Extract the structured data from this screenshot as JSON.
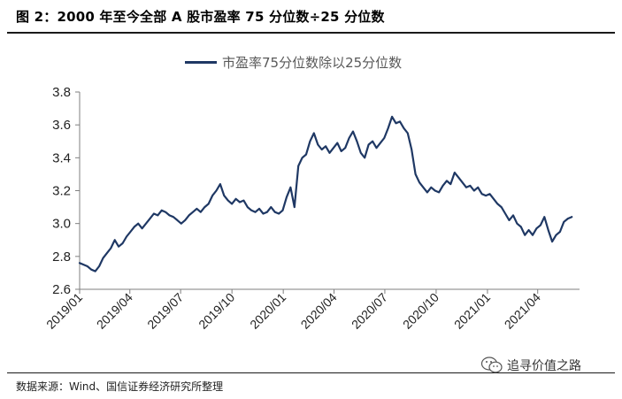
{
  "figure": {
    "title": "图 2：2000 年至今全部 A 股市盈率 75 分位数÷25 分位数",
    "source": "数据来源：Wind、国信证券经济研究所整理",
    "watermark": "追寻价值之路",
    "watermark_icon": "wechat-bubble-icon"
  },
  "chart_data": {
    "type": "line",
    "title": "",
    "xlabel": "",
    "ylabel": "",
    "ylim": [
      2.6,
      3.8
    ],
    "yticks": [
      "2.6",
      "2.8",
      "3.0",
      "3.2",
      "3.4",
      "3.6",
      "3.8"
    ],
    "xticks": [
      "2019/01",
      "2019/04",
      "2019/07",
      "2019/10",
      "2020/01",
      "2020/04",
      "2020/07",
      "2020/10",
      "2021/01",
      "2021/04"
    ],
    "xlim": [
      "2019-01-01",
      "2021-06-15"
    ],
    "grid": false,
    "legend": "top-center",
    "color": "#1f3864",
    "series": [
      {
        "name": "市盈率75分位数除以25分位数",
        "points": [
          [
            "2019-01-01",
            2.76
          ],
          [
            "2019-01-08",
            2.75
          ],
          [
            "2019-01-15",
            2.74
          ],
          [
            "2019-01-22",
            2.72
          ],
          [
            "2019-01-29",
            2.71
          ],
          [
            "2019-02-05",
            2.74
          ],
          [
            "2019-02-12",
            2.79
          ],
          [
            "2019-02-19",
            2.82
          ],
          [
            "2019-02-26",
            2.85
          ],
          [
            "2019-03-05",
            2.9
          ],
          [
            "2019-03-12",
            2.86
          ],
          [
            "2019-03-19",
            2.88
          ],
          [
            "2019-03-26",
            2.92
          ],
          [
            "2019-04-02",
            2.95
          ],
          [
            "2019-04-09",
            2.98
          ],
          [
            "2019-04-16",
            3.0
          ],
          [
            "2019-04-23",
            2.97
          ],
          [
            "2019-04-30",
            3.0
          ],
          [
            "2019-05-07",
            3.03
          ],
          [
            "2019-05-14",
            3.06
          ],
          [
            "2019-05-21",
            3.05
          ],
          [
            "2019-05-28",
            3.08
          ],
          [
            "2019-06-04",
            3.07
          ],
          [
            "2019-06-11",
            3.05
          ],
          [
            "2019-06-18",
            3.04
          ],
          [
            "2019-06-25",
            3.02
          ],
          [
            "2019-07-02",
            3.0
          ],
          [
            "2019-07-09",
            3.02
          ],
          [
            "2019-07-16",
            3.05
          ],
          [
            "2019-07-23",
            3.07
          ],
          [
            "2019-07-30",
            3.09
          ],
          [
            "2019-08-06",
            3.07
          ],
          [
            "2019-08-13",
            3.1
          ],
          [
            "2019-08-20",
            3.12
          ],
          [
            "2019-08-27",
            3.17
          ],
          [
            "2019-09-03",
            3.2
          ],
          [
            "2019-09-10",
            3.24
          ],
          [
            "2019-09-17",
            3.17
          ],
          [
            "2019-09-24",
            3.14
          ],
          [
            "2019-10-01",
            3.12
          ],
          [
            "2019-10-08",
            3.15
          ],
          [
            "2019-10-15",
            3.13
          ],
          [
            "2019-10-22",
            3.14
          ],
          [
            "2019-10-29",
            3.1
          ],
          [
            "2019-11-05",
            3.08
          ],
          [
            "2019-11-12",
            3.07
          ],
          [
            "2019-11-19",
            3.09
          ],
          [
            "2019-11-26",
            3.06
          ],
          [
            "2019-12-03",
            3.07
          ],
          [
            "2019-12-10",
            3.1
          ],
          [
            "2019-12-17",
            3.07
          ],
          [
            "2019-12-24",
            3.06
          ],
          [
            "2019-12-31",
            3.08
          ],
          [
            "2020-01-07",
            3.16
          ],
          [
            "2020-01-14",
            3.22
          ],
          [
            "2020-01-21",
            3.1
          ],
          [
            "2020-01-28",
            3.35
          ],
          [
            "2020-02-04",
            3.4
          ],
          [
            "2020-02-11",
            3.42
          ],
          [
            "2020-02-18",
            3.5
          ],
          [
            "2020-02-25",
            3.55
          ],
          [
            "2020-03-03",
            3.48
          ],
          [
            "2020-03-10",
            3.45
          ],
          [
            "2020-03-17",
            3.47
          ],
          [
            "2020-03-24",
            3.43
          ],
          [
            "2020-03-31",
            3.46
          ],
          [
            "2020-04-07",
            3.49
          ],
          [
            "2020-04-14",
            3.44
          ],
          [
            "2020-04-21",
            3.46
          ],
          [
            "2020-04-28",
            3.52
          ],
          [
            "2020-05-05",
            3.56
          ],
          [
            "2020-05-12",
            3.5
          ],
          [
            "2020-05-19",
            3.43
          ],
          [
            "2020-05-26",
            3.4
          ],
          [
            "2020-06-02",
            3.48
          ],
          [
            "2020-06-09",
            3.5
          ],
          [
            "2020-06-16",
            3.46
          ],
          [
            "2020-06-23",
            3.49
          ],
          [
            "2020-06-30",
            3.52
          ],
          [
            "2020-07-07",
            3.58
          ],
          [
            "2020-07-14",
            3.65
          ],
          [
            "2020-07-21",
            3.61
          ],
          [
            "2020-07-28",
            3.62
          ],
          [
            "2020-08-04",
            3.58
          ],
          [
            "2020-08-11",
            3.55
          ],
          [
            "2020-08-18",
            3.45
          ],
          [
            "2020-08-25",
            3.3
          ],
          [
            "2020-09-01",
            3.25
          ],
          [
            "2020-09-08",
            3.22
          ],
          [
            "2020-09-15",
            3.19
          ],
          [
            "2020-09-22",
            3.22
          ],
          [
            "2020-09-29",
            3.2
          ],
          [
            "2020-10-06",
            3.19
          ],
          [
            "2020-10-13",
            3.23
          ],
          [
            "2020-10-20",
            3.26
          ],
          [
            "2020-10-27",
            3.24
          ],
          [
            "2020-11-03",
            3.31
          ],
          [
            "2020-11-10",
            3.28
          ],
          [
            "2020-11-17",
            3.25
          ],
          [
            "2020-11-24",
            3.22
          ],
          [
            "2020-12-01",
            3.23
          ],
          [
            "2020-12-08",
            3.2
          ],
          [
            "2020-12-15",
            3.22
          ],
          [
            "2020-12-22",
            3.18
          ],
          [
            "2020-12-29",
            3.17
          ],
          [
            "2021-01-05",
            3.18
          ],
          [
            "2021-01-12",
            3.15
          ],
          [
            "2021-01-19",
            3.12
          ],
          [
            "2021-01-26",
            3.1
          ],
          [
            "2021-02-02",
            3.06
          ],
          [
            "2021-02-09",
            3.02
          ],
          [
            "2021-02-16",
            3.05
          ],
          [
            "2021-02-23",
            3.0
          ],
          [
            "2021-03-02",
            2.98
          ],
          [
            "2021-03-09",
            2.93
          ],
          [
            "2021-03-16",
            2.96
          ],
          [
            "2021-03-23",
            2.93
          ],
          [
            "2021-03-30",
            2.97
          ],
          [
            "2021-04-06",
            2.99
          ],
          [
            "2021-04-13",
            3.04
          ],
          [
            "2021-04-20",
            2.96
          ],
          [
            "2021-04-27",
            2.89
          ],
          [
            "2021-05-04",
            2.93
          ],
          [
            "2021-05-11",
            2.95
          ],
          [
            "2021-05-18",
            3.01
          ],
          [
            "2021-05-25",
            3.03
          ],
          [
            "2021-06-01",
            3.04
          ]
        ]
      }
    ]
  }
}
